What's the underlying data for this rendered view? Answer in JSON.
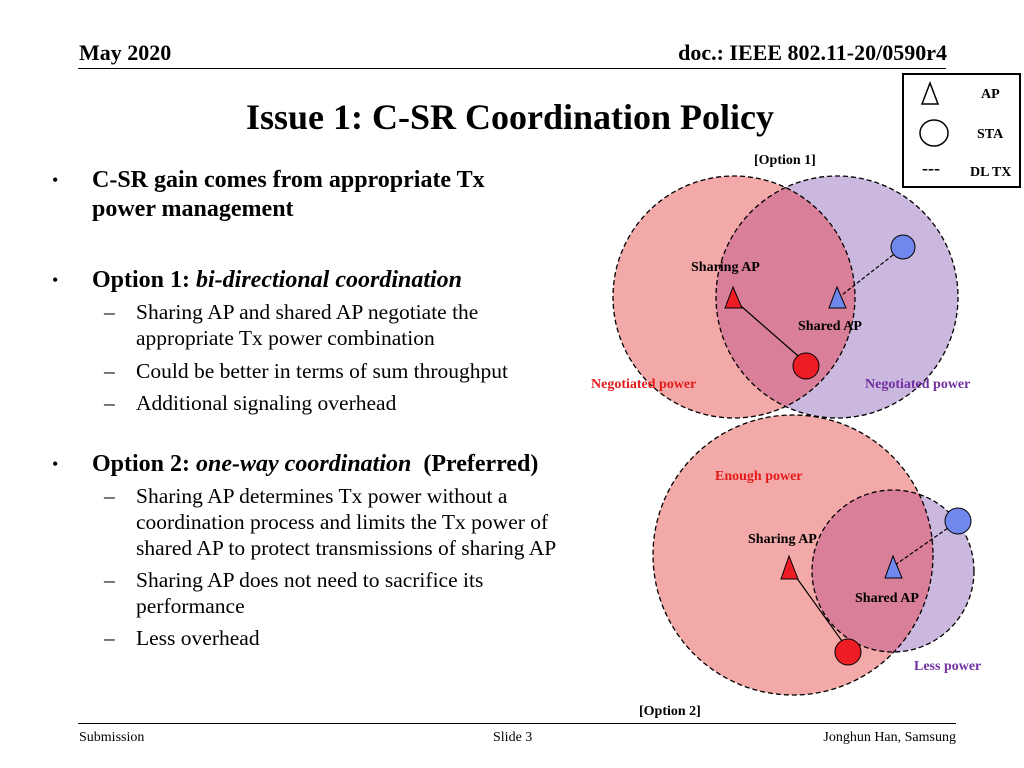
{
  "header": {
    "date": "May 2020",
    "doc": "doc.: IEEE 802.11-20/0590r4"
  },
  "title": "Issue 1: C-SR Coordination Policy",
  "bullets": {
    "b1": {
      "text": "C-SR gain comes from appropriate Tx power management"
    },
    "b2": {
      "prefix": "Option 1: ",
      "emph": "bi-directional coordination",
      "subs": [
        "Sharing AP and shared AP negotiate the appropriate Tx power combination",
        "Could be better in terms of sum throughput",
        "Additional signaling overhead"
      ]
    },
    "b3": {
      "prefix": "Option 2: ",
      "emph": "one-way coordination",
      "suffix": "(Preferred)",
      "subs": [
        "Sharing AP determines Tx power without a coordination process and limits the Tx power of shared AP to protect transmissions of sharing AP",
        "Sharing AP does not need to sacrifice its performance",
        "Less overhead"
      ]
    }
  },
  "legend": {
    "ap": "AP",
    "sta": "STA",
    "dltx_symbol": "---",
    "dltx": "DL TX",
    "icons": [
      "triangle-outline-icon",
      "circle-outline-icon",
      "dashed-line-icon"
    ]
  },
  "diagram1": {
    "caption": "[Option 1]",
    "sharing_ap": "Sharing AP",
    "shared_ap": "Shared AP",
    "left_power": "Negotiated power",
    "right_power": "Negotiated power"
  },
  "diagram2": {
    "caption": "[Option 2]",
    "sharing_ap": "Sharing AP",
    "shared_ap": "Shared AP",
    "sharing_power": "Enough power",
    "shared_power": "Less power"
  },
  "colors": {
    "sharing_fill": "#f4a9a9",
    "shared_fill": "#cbb8df",
    "overlap_fill": "#da7f9a",
    "ap_red": "#ee1c25",
    "ap_blue": "#7088ee",
    "red_label": "#e41b1b",
    "purple_label": "#7030a0"
  },
  "footer": {
    "left": "Submission",
    "center": "Slide 3",
    "right": "Jonghun Han, Samsung"
  }
}
